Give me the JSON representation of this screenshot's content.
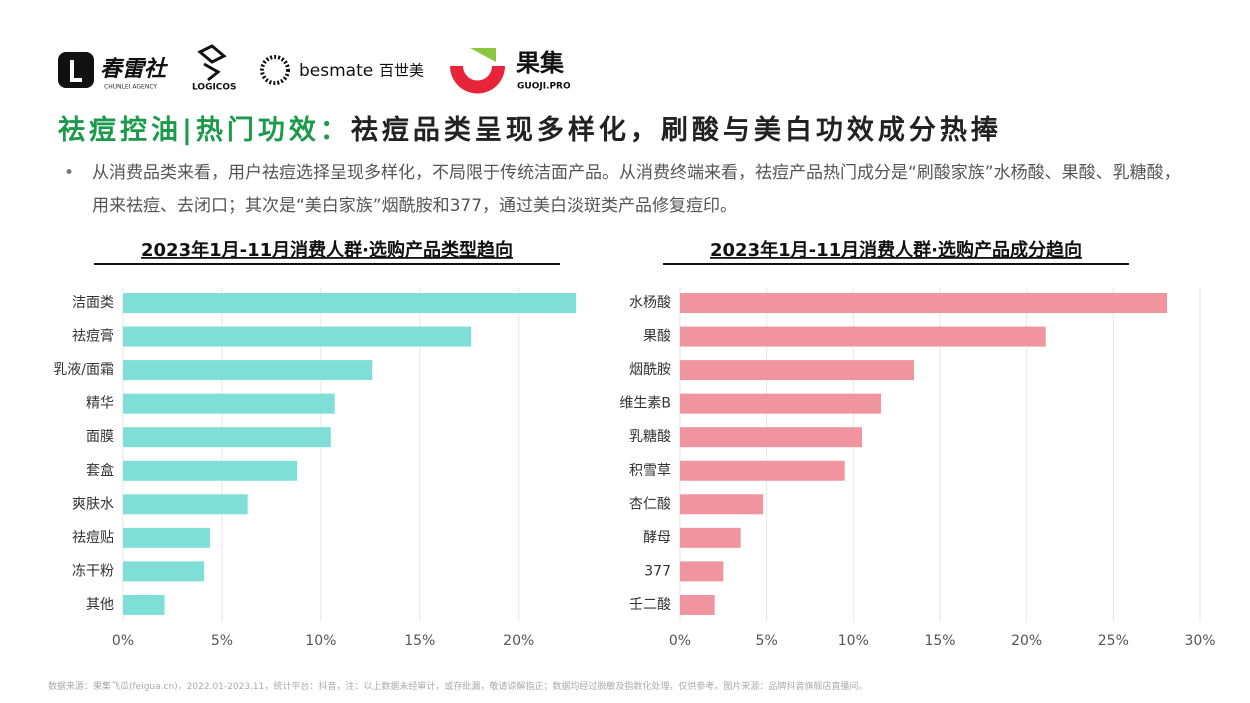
{
  "logos": {
    "chunlei": "春雷社",
    "chunlei_en": "CHUNLEI AGENCY",
    "logicos": "LOGICOS",
    "besmate": "besmate",
    "besmate_cn": "百世美",
    "guoji": "果集",
    "guoji_en": "GUOJI.PRO"
  },
  "header": {
    "title_highlight": "祛痘控油|热门功效：",
    "title_rest": "祛痘品类呈现多样化，刷酸与美白功效成分热捧",
    "bullet": "从消费品类来看，用户祛痘选择呈现多样化，不局限于传统洁面产品。从消费终端来看，祛痘产品热门成分是“刷酸家族”水杨酸、果酸、乳糖酸，用来祛痘、去闭口；其次是“美白家族”烟酰胺和377，通过美白淡斑类产品修复痘印。"
  },
  "chart_data": [
    {
      "type": "bar",
      "orientation": "horizontal",
      "title": "2023年1月-11月消费人群·选购产品类型趋向",
      "categories": [
        "洁面类",
        "祛痘膏",
        "乳液/面霜",
        "精华",
        "面膜",
        "套盒",
        "爽肤水",
        "祛痘贴",
        "冻干粉",
        "其他"
      ],
      "values": [
        22.9,
        17.6,
        12.6,
        10.7,
        10.5,
        8.8,
        6.3,
        4.4,
        4.1,
        2.1
      ],
      "color": "#7fded6",
      "xlim": [
        0,
        23.5
      ],
      "xticks": [
        {
          "value": 0,
          "label": "0%"
        },
        {
          "value": 5,
          "label": "5%"
        },
        {
          "value": 10,
          "label": "10%"
        },
        {
          "value": 15,
          "label": "15%"
        },
        {
          "value": 20,
          "label": "20%"
        }
      ],
      "grid": true
    },
    {
      "type": "bar",
      "orientation": "horizontal",
      "title": "2023年1月-11月消费人群·选购产品成分趋向",
      "categories": [
        "水杨酸",
        "果酸",
        "烟酰胺",
        "维生素B",
        "乳糖酸",
        "积雪草",
        "杏仁酸",
        "酵母",
        "377",
        "壬二酸"
      ],
      "values": [
        28.1,
        21.1,
        13.5,
        11.6,
        10.5,
        9.5,
        4.8,
        3.5,
        2.5,
        2.0
      ],
      "color": "#f0959f",
      "xlim": [
        0,
        30
      ],
      "xticks": [
        {
          "value": 0,
          "label": "0%"
        },
        {
          "value": 5,
          "label": "5%"
        },
        {
          "value": 10,
          "label": "10%"
        },
        {
          "value": 15,
          "label": "15%"
        },
        {
          "value": 20,
          "label": "20%"
        },
        {
          "value": 25,
          "label": "25%"
        },
        {
          "value": 30,
          "label": "30%"
        }
      ],
      "grid": true
    }
  ],
  "footnote": "数据来源：果集飞瓜(feigua.cn)，2022.01-2023.11，统计平台：抖音，注：以上数据未经审计，或存纰漏，敬请谅解指正；数据均经过脱敏及指数化处理，仅供参考。图片来源：品牌抖音旗舰店直播间。"
}
